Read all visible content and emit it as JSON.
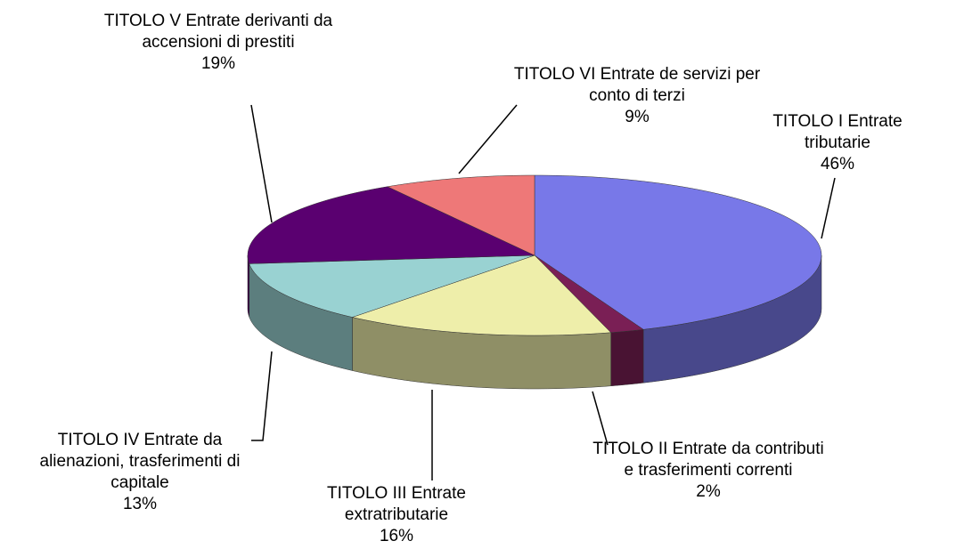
{
  "chart_data": {
    "type": "pie3d",
    "categories": [
      "TITOLO I Entrate tributarie",
      "TITOLO II Entrate da contributi e trasferimenti correnti",
      "TITOLO III Entrate extratributarie",
      "TITOLO IV Entrate da alienazioni, trasferimenti di capitale",
      "TITOLO V Entrate derivanti da accensioni di prestiti",
      "TITOLO VI Entrate de servizi per conto di terzi"
    ],
    "values": [
      46,
      2,
      16,
      13,
      19,
      9
    ],
    "value_labels": [
      "46%",
      "2%",
      "16%",
      "13%",
      "19%",
      "9%"
    ],
    "colors": [
      "#7878e8",
      "#7a1f55",
      "#eeeeaa",
      "#99d2d2",
      "#5a0070",
      "#ee7878"
    ]
  }
}
